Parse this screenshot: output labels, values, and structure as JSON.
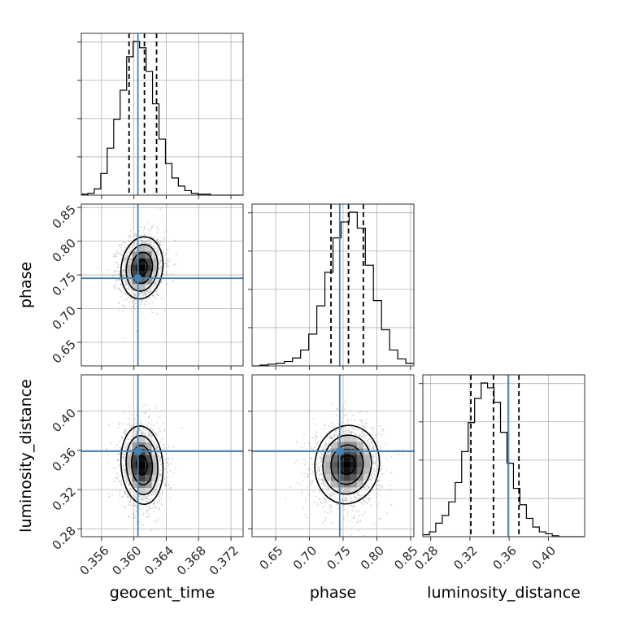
{
  "chart_data": {
    "type": "corner",
    "truth_color": "#4682b4",
    "hist_color": "#000000",
    "grid": true,
    "parameters": [
      {
        "name": "geocent_time",
        "range": [
          0.3535,
          0.3735
        ],
        "ticks": [
          0.356,
          0.36,
          0.364,
          0.368,
          0.372
        ],
        "tick_labels": [
          "0.356",
          "0.360",
          "0.364",
          "0.368",
          "0.372"
        ],
        "truth": 0.3605,
        "quantiles": [
          0.3594,
          0.3613,
          0.3628
        ],
        "hist_bin_width": 0.0008,
        "hist_values": [
          1,
          2,
          7,
          24,
          52,
          84,
          116,
          153,
          170,
          163,
          137,
          101,
          62,
          35,
          19,
          10,
          5,
          2,
          1,
          1,
          0,
          0,
          0,
          0,
          0
        ],
        "hist_ylim": [
          0,
          170
        ]
      },
      {
        "name": "phase",
        "range": [
          0.615,
          0.855
        ],
        "ticks": [
          0.65,
          0.7,
          0.75,
          0.8,
          0.85
        ],
        "tick_labels": [
          "0.65",
          "0.70",
          "0.75",
          "0.80",
          "0.85"
        ],
        "truth": 0.745,
        "quantiles": [
          0.732,
          0.758,
          0.78
        ],
        "hist_bin_width": 0.012,
        "hist_values": [
          0,
          1,
          2,
          3,
          5,
          9,
          18,
          36,
          68,
          106,
          145,
          163,
          174,
          156,
          114,
          74,
          41,
          18,
          8,
          3
        ],
        "hist_ylim": [
          0,
          174
        ]
      },
      {
        "name": "luminosity_distance",
        "range": [
          0.272,
          0.437
        ],
        "ticks": [
          0.28,
          0.32,
          0.36,
          0.4
        ],
        "tick_labels": [
          "0.28",
          "0.32",
          "0.36",
          "0.40"
        ],
        "truth": 0.359,
        "quantiles": [
          0.321,
          0.344,
          0.37
        ],
        "hist_bin_width": 0.0066,
        "hist_values": [
          2,
          5,
          14,
          22,
          36,
          56,
          88,
          118,
          143,
          159,
          154,
          139,
          108,
          76,
          50,
          33,
          19,
          10,
          5,
          3,
          1,
          0,
          0,
          0,
          0
        ],
        "hist_ylim": [
          0,
          159
        ]
      }
    ],
    "pairs": [
      {
        "x": 0,
        "y": 1,
        "center": [
          0.361,
          0.7605
        ],
        "sigma": [
          0.0013,
          0.023
        ],
        "corr": 0.12
      },
      {
        "x": 0,
        "y": 2,
        "center": [
          0.361,
          0.345
        ],
        "sigma": [
          0.0013,
          0.02
        ],
        "corr": -0.1
      },
      {
        "x": 1,
        "y": 2,
        "center": [
          0.756,
          0.3455
        ],
        "sigma": [
          0.024,
          0.02
        ],
        "corr": 0.05
      }
    ]
  }
}
